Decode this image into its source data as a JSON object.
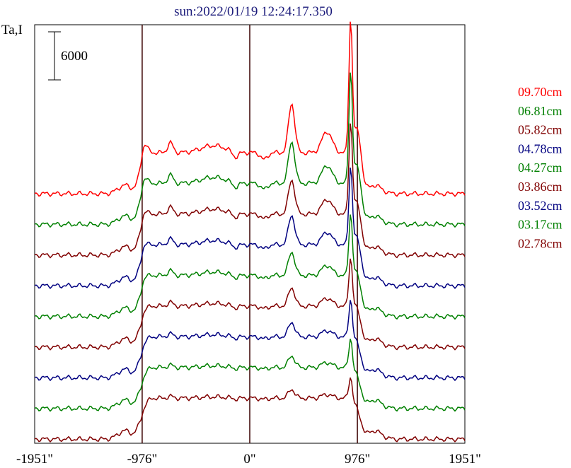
{
  "chart_data": {
    "type": "line",
    "title": "sun:2022/01/19 12:24:17.350",
    "title_color": "#1a1a7a",
    "ylabel": "Ta,I",
    "scale_bar_label": "6000",
    "xlim": [
      -1951,
      1951
    ],
    "x_ticks": [
      "-1951\"",
      "-976\"",
      "0\"",
      "976\"",
      "1951\""
    ],
    "vertical_markers": [
      -976,
      0,
      976
    ],
    "grid": false,
    "legend_position": "right",
    "series": [
      {
        "name": "09.70cm",
        "color": "#ff0000",
        "peak_scale": 1.0
      },
      {
        "name": "06.81cm",
        "color": "#008000",
        "peak_scale": 0.85
      },
      {
        "name": "05.82cm",
        "color": "#800000",
        "peak_scale": 0.7
      },
      {
        "name": "04.78cm",
        "color": "#000080",
        "peak_scale": 0.6
      },
      {
        "name": "04.27cm",
        "color": "#008000",
        "peak_scale": 0.48
      },
      {
        "name": "03.86cm",
        "color": "#800000",
        "peak_scale": 0.38
      },
      {
        "name": "03.52cm",
        "color": "#000080",
        "peak_scale": 0.3
      },
      {
        "name": "03.17cm",
        "color": "#008000",
        "peak_scale": 0.24
      },
      {
        "name": "02.78cm",
        "color": "#800000",
        "peak_scale": 0.18
      }
    ]
  }
}
